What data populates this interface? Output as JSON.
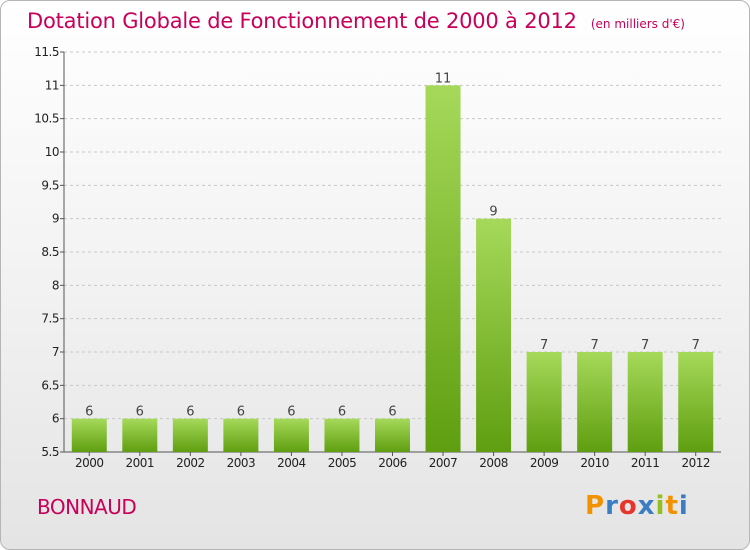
{
  "header": {
    "title": "Dotation Globale de Fonctionnement de 2000 à 2012",
    "unit": "(en milliers d'€)"
  },
  "footer": {
    "commune": "BONNAUD",
    "brand_letters": [
      "P",
      "r",
      "o",
      "x",
      "i",
      "t",
      "i"
    ],
    "brand_colors": [
      "#f39200",
      "#3b7dc4",
      "#e7352b",
      "#3b7dc4",
      "#93c01f",
      "#f39200",
      "#3b7dc4"
    ]
  },
  "colors": {
    "bar_light": "#a6d95a",
    "bar_dark": "#5f9e10",
    "grid": "#c8c8c8",
    "axis_text": "#222222"
  },
  "chart_data": {
    "type": "bar",
    "categories": [
      "2000",
      "2001",
      "2002",
      "2003",
      "2004",
      "2005",
      "2006",
      "2007",
      "2008",
      "2009",
      "2010",
      "2011",
      "2012"
    ],
    "values": [
      6,
      6,
      6,
      6,
      6,
      6,
      6,
      11,
      9,
      7,
      7,
      7,
      7
    ],
    "data_labels": [
      "6",
      "6",
      "6",
      "6",
      "6",
      "6",
      "6",
      "11",
      "9",
      "7",
      "7",
      "7",
      "7"
    ],
    "ylim": [
      5.5,
      11.5
    ],
    "yticks": [
      "5.5",
      "6",
      "6.5",
      "7",
      "7.5",
      "8",
      "8.5",
      "9",
      "9.5",
      "10",
      "10.5",
      "11",
      "11.5"
    ],
    "grid": true,
    "legend": "none"
  }
}
